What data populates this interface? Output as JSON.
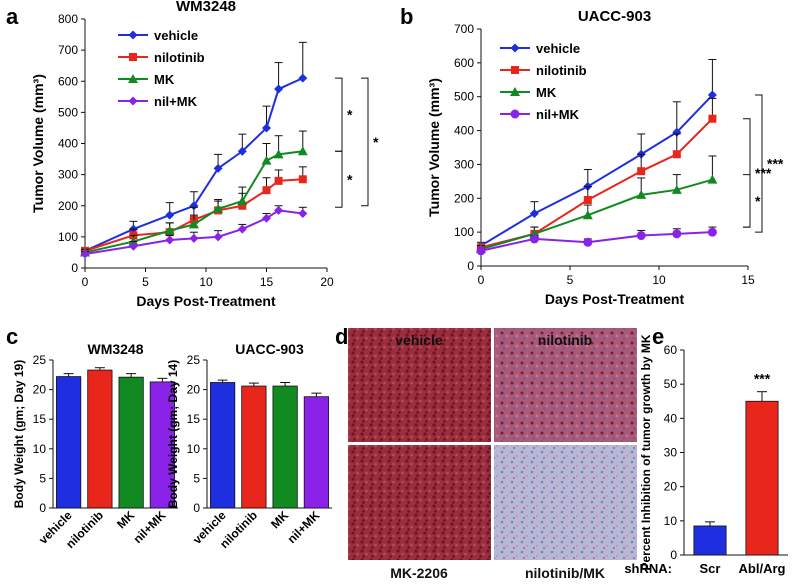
{
  "panels": {
    "a": "a",
    "b": "b",
    "c": "c",
    "d": "d",
    "e": "e"
  },
  "colors": {
    "vehicle": "#1f2fe0",
    "nilotinib": "#e8261c",
    "MK": "#118a21",
    "nil_MK": "#8a22e8",
    "axis": "#111111"
  },
  "chart_data": [
    {
      "id": "a",
      "type": "line",
      "title": "WM3248",
      "xlabel": "Days Post-Treatment",
      "ylabel": "Tumor Volume (mm³)",
      "xlim": [
        0,
        20
      ],
      "ylim": [
        0,
        800
      ],
      "xticks": [
        0,
        5,
        10,
        15,
        20
      ],
      "yticks": [
        0,
        100,
        200,
        300,
        400,
        500,
        600,
        700,
        800
      ],
      "legend": "top-left",
      "series": [
        {
          "name": "vehicle",
          "marker": "diamond",
          "x": [
            0,
            4,
            7,
            9,
            11,
            13,
            15,
            16,
            18
          ],
          "y": [
            55,
            125,
            170,
            200,
            320,
            375,
            450,
            575,
            610
          ],
          "err": [
            10,
            25,
            40,
            45,
            45,
            55,
            70,
            85,
            115
          ]
        },
        {
          "name": "nilotinib",
          "marker": "square",
          "x": [
            0,
            4,
            7,
            9,
            11,
            13,
            15,
            16,
            18
          ],
          "y": [
            55,
            105,
            115,
            155,
            185,
            200,
            250,
            280,
            285
          ],
          "err": [
            10,
            20,
            30,
            40,
            30,
            40,
            40,
            35,
            40
          ]
        },
        {
          "name": "MK",
          "marker": "triangle",
          "x": [
            0,
            4,
            7,
            9,
            11,
            13,
            15,
            16,
            18
          ],
          "y": [
            50,
            85,
            120,
            140,
            190,
            215,
            345,
            365,
            375
          ],
          "err": [
            10,
            20,
            25,
            30,
            30,
            45,
            55,
            60,
            65
          ]
        },
        {
          "name": "nil+MK",
          "marker": "diamond",
          "x": [
            0,
            4,
            7,
            9,
            11,
            13,
            15,
            16,
            18
          ],
          "y": [
            45,
            70,
            90,
            95,
            100,
            125,
            160,
            185,
            175
          ],
          "err": [
            8,
            15,
            15,
            20,
            20,
            15,
            15,
            15,
            20
          ]
        }
      ],
      "annotations": [
        "*",
        "*",
        "*"
      ]
    },
    {
      "id": "b",
      "type": "line",
      "title": "UACC-903",
      "xlabel": "Days Post-Treatment",
      "ylabel": "Tumor Volume (mm³)",
      "xlim": [
        0,
        15
      ],
      "ylim": [
        0,
        700
      ],
      "xticks": [
        0,
        5,
        10,
        15
      ],
      "yticks": [
        0,
        100,
        200,
        300,
        400,
        500,
        600,
        700
      ],
      "legend": "top-left",
      "series": [
        {
          "name": "vehicle",
          "marker": "diamond",
          "x": [
            0,
            3,
            6,
            9,
            11,
            13
          ],
          "y": [
            60,
            155,
            235,
            330,
            395,
            505
          ],
          "err": [
            10,
            35,
            50,
            60,
            90,
            105
          ]
        },
        {
          "name": "nilotinib",
          "marker": "square",
          "x": [
            0,
            3,
            6,
            9,
            11,
            13
          ],
          "y": [
            55,
            95,
            195,
            280,
            330,
            435
          ],
          "err": [
            10,
            20,
            40,
            50,
            60,
            60
          ]
        },
        {
          "name": "MK",
          "marker": "triangle",
          "x": [
            0,
            3,
            6,
            9,
            11,
            13
          ],
          "y": [
            50,
            95,
            150,
            210,
            225,
            255
          ],
          "err": [
            10,
            20,
            30,
            50,
            45,
            70
          ]
        },
        {
          "name": "nil+MK",
          "marker": "circle",
          "x": [
            0,
            3,
            6,
            9,
            11,
            13
          ],
          "y": [
            45,
            80,
            70,
            90,
            95,
            100
          ],
          "err": [
            8,
            10,
            10,
            15,
            15,
            15
          ]
        }
      ],
      "annotations": [
        "***",
        "***",
        "*"
      ]
    },
    {
      "id": "c1",
      "type": "bar",
      "title": "WM3248",
      "xlabel": "",
      "ylabel": "Body Weight (gm; Day 19)",
      "ylim": [
        0,
        25
      ],
      "yticks": [
        0,
        5,
        10,
        15,
        20,
        25
      ],
      "categories": [
        "vehicle",
        "nilotinib",
        "MK",
        "nil+MK"
      ],
      "values": [
        22.2,
        23.3,
        22.1,
        21.3
      ],
      "err": [
        0.5,
        0.4,
        0.6,
        0.6
      ]
    },
    {
      "id": "c2",
      "type": "bar",
      "title": "UACC-903",
      "xlabel": "",
      "ylabel": "Body Weight (gm; Day 14)",
      "ylim": [
        0,
        25
      ],
      "yticks": [
        0,
        5,
        10,
        15,
        20,
        25
      ],
      "categories": [
        "vehicle",
        "nilotinib",
        "MK",
        "nil+MK"
      ],
      "values": [
        21.2,
        20.6,
        20.6,
        18.8
      ],
      "err": [
        0.4,
        0.5,
        0.6,
        0.6
      ]
    },
    {
      "id": "e",
      "type": "bar",
      "title": "",
      "xlabel": "shRNA:",
      "ylabel": "Percent Inhibition of tumor growth by MK",
      "ylim": [
        0,
        60
      ],
      "yticks": [
        0,
        10,
        20,
        30,
        40,
        50,
        60
      ],
      "categories": [
        "Scr",
        "Abl/Arg"
      ],
      "values": [
        8.5,
        45.0
      ],
      "err": [
        1.2,
        2.8
      ],
      "annotations": [
        "***"
      ]
    }
  ],
  "panel_d": {
    "labels": [
      "vehicle",
      "nilotinib",
      "MK-2206",
      "nilotinib/MK"
    ]
  }
}
